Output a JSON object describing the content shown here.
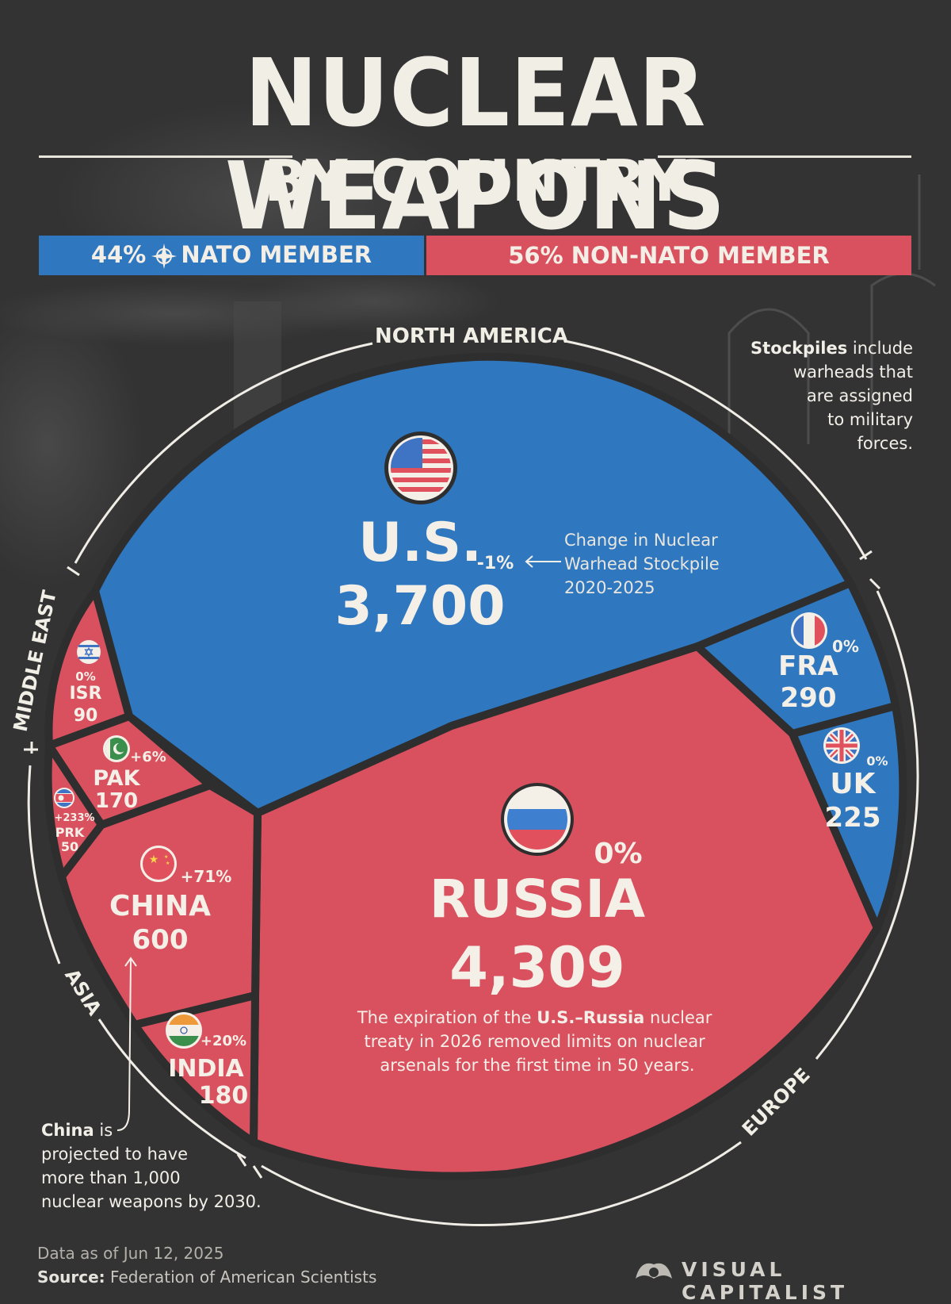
{
  "title": "NUCLEAR WEAPONS",
  "subtitle": "BY COUNTRY",
  "legend": {
    "nato": "44% NATO MEMBER",
    "non_nato": "56% NON-NATO MEMBER",
    "nato_color": "#2f78bf",
    "non_nato_color": "#d9515f"
  },
  "regions": [
    "NORTH AMERICA",
    "MIDDLE EAST",
    "ASIA",
    "EUROPE"
  ],
  "notes": {
    "stockpiles_bold": "Stockpiles",
    "stockpiles_lines": [
      " include",
      "warheads that",
      "are assigned",
      "to military",
      "forces."
    ],
    "change_lines": [
      "Change in Nuclear",
      "Warhead Stockpile",
      "2020-2025"
    ],
    "treaty_line1_a": "The expiration of the ",
    "treaty_line1_b": "U.S.–Russia",
    "treaty_line1_c": " nuclear",
    "treaty_line2": "treaty in 2026 removed limits on nuclear",
    "treaty_line3": "arsenals for the first time in 50 years.",
    "china_bold": "China",
    "china_lines": [
      " is",
      "projected to have",
      "more than 1,000",
      "nuclear weapons by 2030."
    ]
  },
  "chart_data": {
    "type": "voronoi-treemap",
    "unit": "nuclear warheads",
    "countries": [
      {
        "label": "U.S.",
        "value": 3700,
        "value_label": "3,700",
        "change": "-1%",
        "nato": true,
        "region": "NORTH AMERICA",
        "flag": "usa-flag-icon"
      },
      {
        "label": "RUSSIA",
        "value": 4309,
        "value_label": "4,309",
        "change": "0%",
        "nato": false,
        "region": "EUROPE",
        "flag": "russia-flag-icon"
      },
      {
        "label": "FRA",
        "value": 290,
        "value_label": "290",
        "change": "0%",
        "nato": true,
        "region": "EUROPE",
        "flag": "france-flag-icon"
      },
      {
        "label": "UK",
        "value": 225,
        "value_label": "225",
        "change": "0%",
        "nato": true,
        "region": "EUROPE",
        "flag": "uk-flag-icon"
      },
      {
        "label": "CHINA",
        "value": 600,
        "value_label": "600",
        "change": "+71%",
        "nato": false,
        "region": "ASIA",
        "flag": "china-flag-icon"
      },
      {
        "label": "INDIA",
        "value": 180,
        "value_label": "180",
        "change": "+20%",
        "nato": false,
        "region": "ASIA",
        "flag": "india-flag-icon"
      },
      {
        "label": "PAK",
        "value": 170,
        "value_label": "170",
        "change": "+6%",
        "nato": false,
        "region": "ASIA",
        "flag": "pakistan-flag-icon"
      },
      {
        "label": "PRK",
        "value": 50,
        "value_label": "50",
        "change": "+233%",
        "nato": false,
        "region": "ASIA",
        "flag": "north-korea-flag-icon"
      },
      {
        "label": "ISR",
        "value": 90,
        "value_label": "90",
        "change": "0%",
        "nato": false,
        "region": "MIDDLE EAST",
        "flag": "israel-flag-icon"
      }
    ]
  },
  "footer": {
    "date": "Data as of Jun 12, 2025",
    "source_label": "Source:",
    "source_text": " Federation of American Scientists",
    "brand": "VISUAL CAPITALIST"
  }
}
